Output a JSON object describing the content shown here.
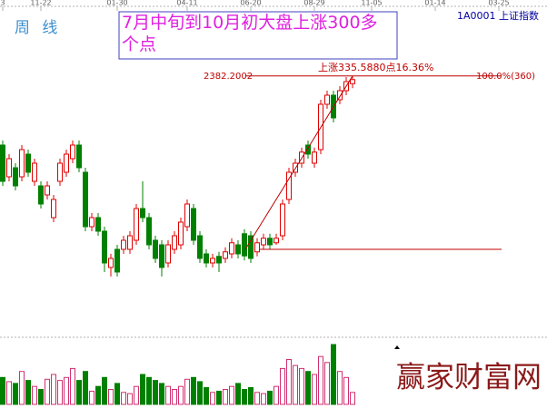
{
  "chart_data": {
    "type": "candlestick",
    "title": "7月中旬到10月初大盘上涨300多个点",
    "period_label": "周 线",
    "index_label": "1A0001 上证指数",
    "watermark": "赢家财富网",
    "annotations": {
      "rise": "上涨335.5880点16.36%",
      "high": {
        "value": 2382.2002,
        "label": "2382.2002"
      },
      "ratio": "100.0%(360)"
    },
    "categories": [
      "3",
      null,
      null,
      null,
      null,
      null,
      "11-22",
      null,
      null,
      null,
      null,
      null,
      null,
      null,
      null,
      null,
      null,
      null,
      "01-30",
      null,
      null,
      null,
      null,
      null,
      null,
      null,
      null,
      null,
      null,
      "04-11",
      null,
      null,
      null,
      null,
      null,
      null,
      null,
      null,
      null,
      "06-20",
      null,
      null,
      null,
      null,
      null,
      null,
      null,
      null,
      null,
      "08-29",
      null,
      null,
      null,
      null,
      null,
      null,
      null,
      null,
      "11-05",
      null,
      null,
      null,
      null,
      null,
      null,
      null,
      null,
      null,
      "01-14",
      null,
      null,
      null,
      null,
      null,
      null,
      null,
      null,
      null,
      "03-25",
      null,
      null,
      null,
      null,
      null,
      null,
      null
    ],
    "open": [
      2245,
      2182,
      2200,
      2182,
      2227,
      2173,
      2164,
      2146,
      2101,
      2173,
      2191,
      2218,
      2245,
      2191,
      2083,
      2101,
      2074,
      2002,
      2038,
      2038,
      2038,
      2056,
      2119,
      2101,
      2056,
      2047,
      2011,
      2038,
      2047,
      2083,
      2119,
      2065,
      2029,
      2011,
      2024,
      2020,
      2029,
      2047,
      2069,
      2065,
      2033,
      2047,
      2060,
      2051,
      2065,
      2137,
      2191,
      2209,
      2245,
      2209,
      2236,
      2326,
      2344,
      2335,
      2353,
      2367,
      null,
      null,
      null,
      null,
      null,
      null,
      null,
      null,
      null,
      null,
      null,
      null,
      null,
      null,
      null,
      null,
      null,
      null,
      null,
      null,
      null,
      null,
      null,
      null,
      null,
      null,
      null,
      null,
      null,
      null
    ],
    "high": [
      2254,
      2227,
      2209,
      2245,
      2236,
      2218,
      2173,
      2173,
      2146,
      2218,
      2236,
      2254,
      2254,
      2200,
      2110,
      2110,
      2083,
      2029,
      2047,
      2065,
      2074,
      2128,
      2173,
      2110,
      2065,
      2056,
      2056,
      2074,
      2101,
      2137,
      2128,
      2074,
      2038,
      2029,
      2033,
      2042,
      2060,
      2056,
      2078,
      2074,
      2060,
      2069,
      2069,
      2069,
      2137,
      2200,
      2218,
      2240,
      2254,
      2240,
      2335,
      2353,
      2353,
      2362,
      2380,
      2382,
      null,
      null,
      null,
      null,
      null,
      null,
      null,
      null,
      null,
      null,
      null,
      null,
      null,
      null,
      null,
      null,
      null,
      null,
      null,
      null,
      null,
      null,
      null,
      null,
      null,
      null,
      null,
      null,
      null,
      null
    ],
    "low": [
      2164,
      2173,
      2155,
      2173,
      2182,
      2164,
      2119,
      2137,
      2092,
      2164,
      2182,
      2209,
      2191,
      2074,
      2074,
      2065,
      1993,
      1984,
      1984,
      2029,
      2029,
      2047,
      2092,
      2038,
      2011,
      1984,
      2002,
      2029,
      2038,
      2074,
      2047,
      2011,
      2002,
      2002,
      1993,
      2011,
      2020,
      2020,
      2016,
      2011,
      2024,
      2038,
      2038,
      2047,
      2056,
      2128,
      2182,
      2200,
      2218,
      2200,
      2227,
      2317,
      2290,
      2326,
      2344,
      2358,
      null,
      null,
      null,
      null,
      null,
      null,
      null,
      null,
      null,
      null,
      null,
      null,
      null,
      null,
      null,
      null,
      null,
      null,
      null,
      null,
      null,
      null,
      null,
      null,
      null,
      null,
      null,
      null,
      null,
      null
    ],
    "close": [
      2173,
      2218,
      2164,
      2236,
      2191,
      2209,
      2128,
      2164,
      2137,
      2209,
      2227,
      2245,
      2200,
      2083,
      2101,
      2074,
      2011,
      2020,
      1993,
      2056,
      2065,
      2119,
      2101,
      2047,
      2020,
      2002,
      2047,
      2065,
      2092,
      2128,
      2056,
      2020,
      2011,
      2020,
      2011,
      2033,
      2051,
      2029,
      2025,
      2020,
      2051,
      2060,
      2047,
      2060,
      2128,
      2191,
      2209,
      2231,
      2227,
      2231,
      2326,
      2344,
      2299,
      2353,
      2371,
      2375,
      null,
      null,
      null,
      null,
      null,
      null,
      null,
      null,
      null,
      null,
      null,
      null,
      null,
      null,
      null,
      null,
      null,
      null,
      null,
      null,
      null,
      null,
      null,
      null,
      null,
      null,
      null,
      null,
      null,
      null
    ],
    "volume": [
      45,
      38,
      35,
      55,
      40,
      30,
      25,
      42,
      50,
      40,
      45,
      60,
      40,
      55,
      22,
      30,
      45,
      25,
      35,
      20,
      18,
      30,
      50,
      45,
      40,
      35,
      30,
      25,
      30,
      42,
      45,
      38,
      28,
      20,
      22,
      25,
      30,
      35,
      25,
      28,
      20,
      18,
      22,
      30,
      60,
      75,
      65,
      60,
      55,
      50,
      80,
      70,
      100,
      55,
      45,
      20,
      null,
      null,
      null,
      null,
      null,
      null,
      null,
      null,
      null,
      null,
      null,
      null,
      null,
      null,
      null,
      null,
      null,
      null,
      null,
      null,
      null,
      null,
      null,
      null,
      null,
      null,
      null,
      null,
      null,
      null
    ],
    "up_color": "#e00000",
    "down_color": "#008000",
    "ylim": [
      1867,
      2515
    ],
    "vlim": [
      0,
      100
    ]
  }
}
